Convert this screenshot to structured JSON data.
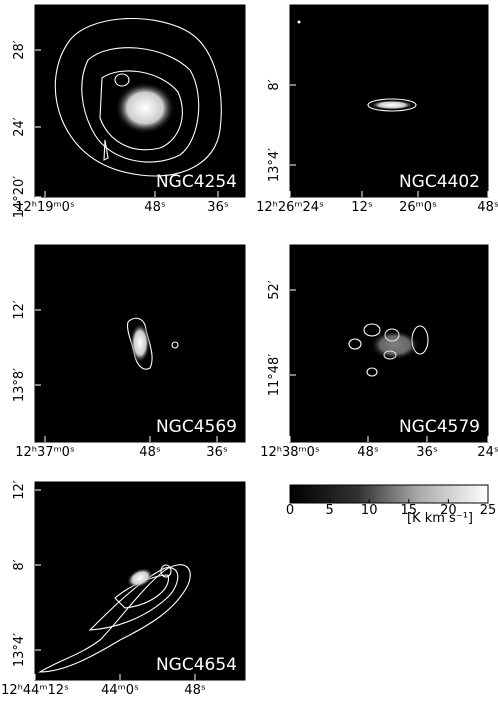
{
  "panels": [
    {
      "name": "NGC4254",
      "yticks": [
        "28′",
        "24′",
        "14°20′"
      ],
      "xticks": [
        "12ʰ19ᵐ0ˢ",
        "48ˢ",
        "36ˢ"
      ]
    },
    {
      "name": "NGC4402",
      "yticks": [
        "8′",
        "13°4′"
      ],
      "xticks": [
        "12ʰ26ᵐ24ˢ",
        "12ˢ",
        "26ᵐ0ˢ",
        "48ˢ"
      ]
    },
    {
      "name": "NGC4569",
      "yticks": [
        "12′",
        "13°8′"
      ],
      "xticks": [
        "12ʰ37ᵐ0ˢ",
        "48ˢ",
        "36ˢ"
      ]
    },
    {
      "name": "NGC4579",
      "yticks": [
        "52′",
        "11°48′"
      ],
      "xticks": [
        "12ʰ38ᵐ0ˢ",
        "48ˢ",
        "36ˢ",
        "24ˢ"
      ]
    },
    {
      "name": "NGC4654",
      "yticks": [
        "12′",
        "8′",
        "13°4′"
      ],
      "xticks": [
        "12ʰ44ᵐ12ˢ",
        "44ᵐ0ˢ",
        "48ˢ"
      ]
    }
  ],
  "colorbar": {
    "lim": [
      0,
      25
    ],
    "ticks": [
      0,
      5,
      10,
      15,
      20,
      25
    ],
    "unit": "[K km s⁻¹]"
  }
}
